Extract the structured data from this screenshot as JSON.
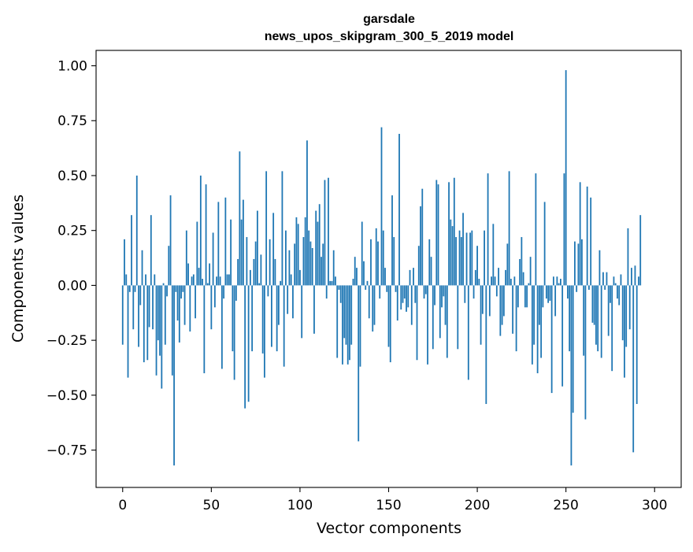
{
  "chart_data": {
    "type": "bar",
    "title": "garsdale",
    "subtitle": "news_upos_skipgram_300_5_2019 model",
    "xlabel": "Vector components",
    "ylabel": "Components values",
    "xlim": [
      -15,
      315
    ],
    "ylim": [
      -0.92,
      1.07
    ],
    "xticks": [
      0,
      50,
      100,
      150,
      200,
      250,
      300
    ],
    "yticks": [
      -0.75,
      -0.5,
      -0.25,
      0.0,
      0.25,
      0.5,
      0.75,
      1.0
    ],
    "ytick_labels": [
      "−0.75",
      "−0.50",
      "−0.25",
      "0.00",
      "0.25",
      "0.50",
      "0.75",
      "1.00"
    ],
    "xtick_labels": [
      "0",
      "50",
      "100",
      "150",
      "200",
      "250",
      "300"
    ],
    "bar_color": "#1f77b4",
    "grid": false,
    "values": [
      -0.27,
      0.21,
      0.05,
      -0.42,
      -0.03,
      0.32,
      -0.2,
      -0.03,
      0.5,
      -0.28,
      -0.09,
      0.16,
      -0.35,
      0.05,
      -0.34,
      -0.19,
      0.32,
      -0.2,
      0.05,
      -0.41,
      -0.25,
      -0.32,
      -0.47,
      0.01,
      -0.27,
      -0.05,
      0.18,
      0.41,
      -0.41,
      -0.82,
      -0.03,
      -0.16,
      -0.26,
      -0.06,
      -0.03,
      -0.18,
      0.25,
      0.1,
      -0.21,
      0.04,
      0.05,
      -0.15,
      0.29,
      0.08,
      0.5,
      0.03,
      -0.4,
      0.46,
      0.01,
      0.1,
      -0.2,
      0.24,
      -0.1,
      0.04,
      0.38,
      0.04,
      -0.38,
      -0.06,
      0.4,
      0.05,
      0.05,
      0.3,
      -0.3,
      -0.43,
      -0.07,
      0.12,
      0.61,
      0.3,
      0.39,
      -0.56,
      0.22,
      -0.53,
      0.07,
      -0.3,
      0.12,
      0.2,
      0.34,
      0.01,
      0.14,
      -0.31,
      -0.42,
      0.52,
      -0.05,
      0.21,
      -0.28,
      0.33,
      0.12,
      -0.3,
      -0.18,
      0.02,
      0.52,
      -0.37,
      0.25,
      -0.13,
      0.16,
      0.05,
      -0.15,
      0.19,
      0.31,
      0.28,
      0.07,
      -0.24,
      0.22,
      0.31,
      0.66,
      0.25,
      0.2,
      0.17,
      -0.22,
      0.34,
      0.29,
      0.37,
      0.13,
      0.19,
      0.48,
      -0.06,
      0.49,
      0.02,
      0.02,
      0.16,
      0.04,
      -0.33,
      -0.02,
      -0.08,
      -0.36,
      -0.24,
      -0.27,
      -0.36,
      -0.34,
      -0.27,
      0.03,
      0.13,
      0.08,
      -0.71,
      -0.37,
      0.29,
      0.11,
      -0.02,
      0.02,
      -0.15,
      0.21,
      -0.21,
      -0.18,
      0.26,
      0.2,
      -0.06,
      0.72,
      0.25,
      0.08,
      -0.03,
      -0.28,
      -0.35,
      0.41,
      0.22,
      -0.03,
      -0.16,
      0.69,
      -0.11,
      -0.08,
      -0.06,
      -0.12,
      -0.1,
      0.07,
      -0.18,
      0.08,
      -0.08,
      -0.34,
      0.18,
      0.36,
      0.44,
      -0.06,
      -0.04,
      -0.36,
      0.21,
      0.13,
      -0.29,
      -0.09,
      0.48,
      0.46,
      -0.24,
      -0.1,
      -0.05,
      -0.18,
      -0.33,
      0.47,
      0.3,
      0.27,
      0.49,
      0.22,
      -0.29,
      0.25,
      0.22,
      0.33,
      -0.08,
      0.24,
      -0.43,
      0.24,
      0.25,
      -0.06,
      0.07,
      0.18,
      0.03,
      -0.27,
      -0.13,
      0.25,
      -0.54,
      0.51,
      -0.14,
      0.04,
      0.28,
      0.04,
      -0.05,
      0.08,
      -0.23,
      -0.18,
      -0.14,
      0.07,
      0.19,
      0.52,
      0.03,
      -0.22,
      0.04,
      -0.3,
      -0.1,
      0.12,
      0.22,
      0.06,
      -0.1,
      -0.1,
      0.01,
      0.13,
      -0.36,
      -0.27,
      0.51,
      -0.4,
      -0.18,
      -0.33,
      -0.1,
      0.38,
      -0.06,
      -0.08,
      -0.07,
      -0.49,
      0.04,
      -0.14,
      0.04,
      0.01,
      0.03,
      -0.46,
      0.51,
      0.98,
      -0.06,
      -0.3,
      -0.82,
      -0.58,
      0.2,
      -0.03,
      0.19,
      0.47,
      0.21,
      -0.32,
      -0.61,
      0.45,
      -0.02,
      0.4,
      -0.17,
      -0.18,
      -0.27,
      -0.3,
      0.16,
      -0.33,
      0.06,
      -0.02,
      0.06,
      -0.23,
      -0.08,
      -0.39,
      0.04,
      0.01,
      -0.06,
      -0.09,
      0.05,
      -0.25,
      -0.42,
      -0.28,
      0.26,
      -0.2,
      0.08,
      -0.76,
      0.09,
      -0.54,
      0.04,
      0.32
    ]
  }
}
